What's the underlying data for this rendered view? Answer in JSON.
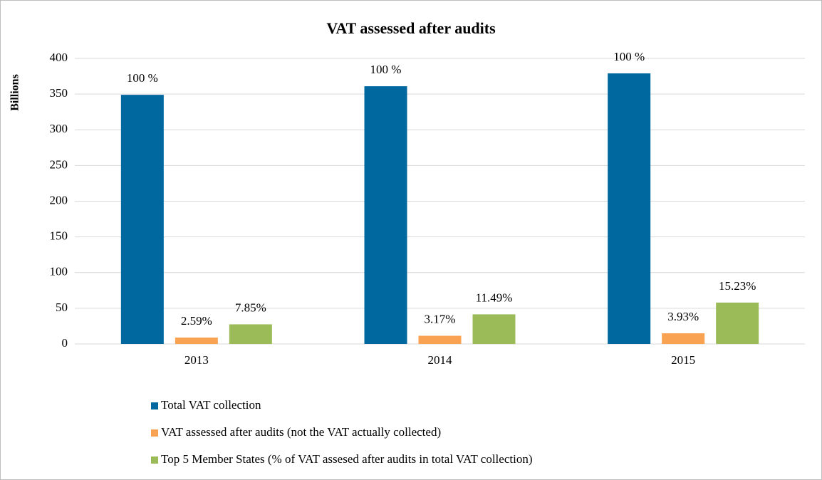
{
  "chart_data": {
    "type": "bar",
    "title": "VAT assessed after audits",
    "y_label": "Billions",
    "categories": [
      "2013",
      "2014",
      "2015"
    ],
    "series": [
      {
        "name": "Total VAT collection",
        "color": "#00689f",
        "values": [
          349,
          361,
          379
        ],
        "labels": [
          "100 %",
          "100 %",
          "100 %"
        ]
      },
      {
        "name": "VAT assessed after audits (not the VAT actually collected)",
        "color": "#f8a252",
        "values": [
          9,
          11.5,
          15
        ],
        "labels": [
          "2.59%",
          "3.17%",
          "3.93%"
        ]
      },
      {
        "name": "Top 5 Member States (% of VAT assesed after audits in total VAT collection)",
        "color": "#9bbb59",
        "values": [
          27.5,
          41.5,
          58
        ],
        "labels": [
          "7.85%",
          "11.49%",
          "15.23%"
        ]
      }
    ],
    "ylim": [
      0,
      400
    ],
    "yticks": [
      0,
      50,
      100,
      150,
      200,
      250,
      300,
      350,
      400
    ],
    "grid": true,
    "legend": "bottom"
  }
}
